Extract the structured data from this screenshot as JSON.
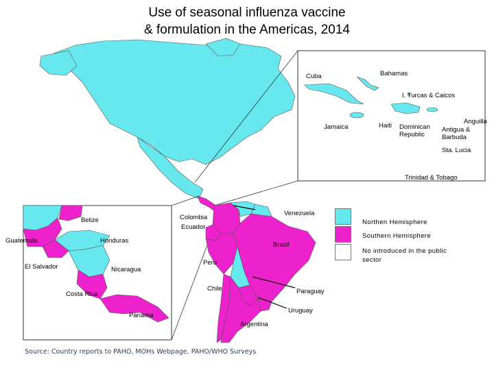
{
  "title_line1": "Use of seasonal influenza vaccine",
  "title_line2": "& formulation in the Americas, 2014",
  "colors": {
    "northern": "#66e8ee",
    "southern": "#ee22cc",
    "not_introduced": "#ffffff",
    "border": "#555555"
  },
  "caribbean_inset": {
    "labels": {
      "cuba": "Cuba",
      "bahamas": "Bahamas",
      "turks_caicos": "I. Turcas & Caicos",
      "jamaica": "Jamaica",
      "haiti": "Haiti",
      "dominican_republic_1": "Dominican",
      "dominican_republic_2": "Republic",
      "anguilla": "Anguilla",
      "antigua_1": "Antigua &",
      "antigua_2": "Barbuda",
      "sta_lucia": "Sta. Lucia",
      "trinidad": "Trinidad & Tobago"
    }
  },
  "central_america_inset": {
    "labels": {
      "belize": "Belize",
      "guatemala": "Guatemala",
      "honduras": "Honduras",
      "el_salvador": "El Salvador",
      "nicaragua": "Nicaragua",
      "costa_rica": "Costa Rica",
      "panama": "Panama"
    }
  },
  "south_america": {
    "labels": {
      "colombia": "Colombia",
      "venezuela": "Venezuela",
      "ecuador": "Ecuador",
      "brazil": "Brazil",
      "peru": "Peru",
      "chile": "Chile",
      "paraguay": "Paraguay",
      "uruguay": "Uruguay",
      "argentina": "Argentina"
    }
  },
  "legend": [
    {
      "label": "Northen Hemisphere",
      "color": "#66e8ee"
    },
    {
      "label": "Southern Hemisphere",
      "color": "#ee22cc"
    },
    {
      "label_line1": "No introduced in the public",
      "label_line2": "sector",
      "color": "#ffffff"
    }
  ],
  "source": "Source: Country reports to PAHO, MOHs Webpage, PAHO/WHO Surveys"
}
